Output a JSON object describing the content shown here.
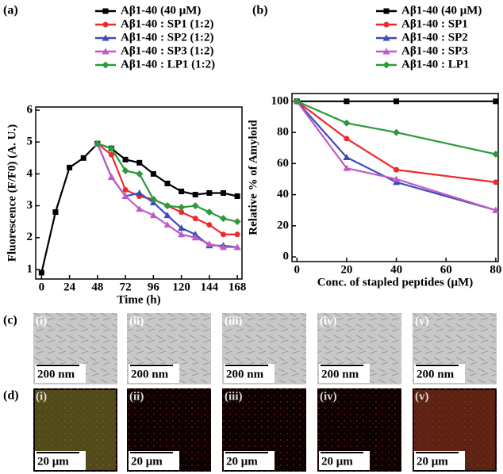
{
  "chart_data": [
    {
      "type": "line",
      "panel_label": "(a)",
      "x_label": "Time (h)",
      "y_label": "Fluorescence (F/F0) (A. U.)",
      "xlim": [
        -5,
        172
      ],
      "ylim": [
        0.7,
        6.1
      ],
      "xticks": [
        0,
        24,
        48,
        72,
        96,
        120,
        144,
        168
      ],
      "yticks": [
        1,
        2,
        3,
        4,
        5,
        6
      ],
      "series": [
        {
          "name": "Aβ1-40 (40 μM)",
          "color": "#000000",
          "marker": "square",
          "x": [
            0,
            12,
            24,
            36,
            48,
            60,
            72,
            84,
            96,
            108,
            120,
            132,
            144,
            156,
            168
          ],
          "values": [
            0.9,
            2.8,
            4.2,
            4.5,
            4.95,
            4.8,
            4.45,
            4.35,
            4.0,
            3.7,
            3.45,
            3.35,
            3.4,
            3.4,
            3.3
          ]
        },
        {
          "name": "Aβ1-40 : SP1 (1:2)",
          "color": "#ee2a2a",
          "marker": "circle",
          "x": [
            48,
            60,
            72,
            84,
            96,
            108,
            120,
            132,
            144,
            156,
            168
          ],
          "values": [
            4.95,
            4.6,
            3.5,
            3.3,
            3.2,
            3.0,
            2.8,
            2.6,
            2.4,
            2.1,
            2.1
          ]
        },
        {
          "name": "Aβ1-40 : SP2 (1:2)",
          "color": "#3b4cb8",
          "marker": "triangle",
          "x": [
            48,
            60,
            72,
            84,
            96,
            108,
            120,
            132,
            144,
            156,
            168
          ],
          "values": [
            4.95,
            3.9,
            3.3,
            3.4,
            3.1,
            2.7,
            2.3,
            2.1,
            1.75,
            1.75,
            1.7
          ]
        },
        {
          "name": "Aβ1-40 : SP3 (1:2)",
          "color": "#c05ac8",
          "marker": "triangle",
          "x": [
            48,
            60,
            72,
            84,
            96,
            108,
            120,
            132,
            144,
            156,
            168
          ],
          "values": [
            4.95,
            3.9,
            3.3,
            2.9,
            2.7,
            2.4,
            2.1,
            2.0,
            1.8,
            1.7,
            1.7
          ]
        },
        {
          "name": "Aβ1-40 : LP1 (1:2)",
          "color": "#2a9a3a",
          "marker": "diamond",
          "x": [
            48,
            60,
            72,
            84,
            96,
            108,
            120,
            132,
            144,
            156,
            168
          ],
          "values": [
            4.95,
            4.8,
            4.1,
            4.0,
            3.2,
            3.0,
            2.95,
            3.0,
            2.8,
            2.6,
            2.5
          ]
        }
      ]
    },
    {
      "type": "line",
      "panel_label": "(b)",
      "x_label": "Conc. of stapled peptides (μM)",
      "y_label": "Relative % of Amyloid",
      "xlim": [
        -2,
        81
      ],
      "ylim": [
        -3,
        105
      ],
      "xticks": [
        0,
        20,
        40,
        60,
        80
      ],
      "yticks": [
        0,
        20,
        40,
        60,
        80,
        100
      ],
      "series": [
        {
          "name": "Aβ1-40 (40 μM)",
          "color": "#000000",
          "marker": "square",
          "x": [
            0,
            20,
            40,
            80
          ],
          "values": [
            100,
            100,
            100,
            100
          ]
        },
        {
          "name": "Aβ1-40 : SP1",
          "color": "#ee2a2a",
          "marker": "circle",
          "x": [
            0,
            20,
            40,
            80
          ],
          "values": [
            100,
            76,
            56,
            48
          ]
        },
        {
          "name": "Aβ1-40 : SP2",
          "color": "#3b4cb8",
          "marker": "triangle",
          "x": [
            0,
            20,
            40,
            80
          ],
          "values": [
            100,
            64,
            48,
            30
          ]
        },
        {
          "name": "Aβ1-40 : SP3",
          "color": "#c05ac8",
          "marker": "triangle",
          "x": [
            0,
            20,
            40,
            80
          ],
          "values": [
            100,
            57,
            50,
            30
          ]
        },
        {
          "name": "Aβ1-40 : LP1",
          "color": "#2a9a3a",
          "marker": "diamond",
          "x": [
            0,
            20,
            40,
            80
          ],
          "values": [
            100,
            86,
            80,
            66
          ]
        }
      ]
    }
  ],
  "micrographs": [
    {
      "label": "(c)",
      "scale_bar": "200 nm",
      "panels": [
        "(i)",
        "(ii)",
        "(iii)",
        "(iv)",
        "(v)"
      ]
    },
    {
      "label": "(d)",
      "scale_bar": "20 μm",
      "panels": [
        "(i)",
        "(ii)",
        "(iii)",
        "(iv)",
        "(v)"
      ]
    }
  ]
}
